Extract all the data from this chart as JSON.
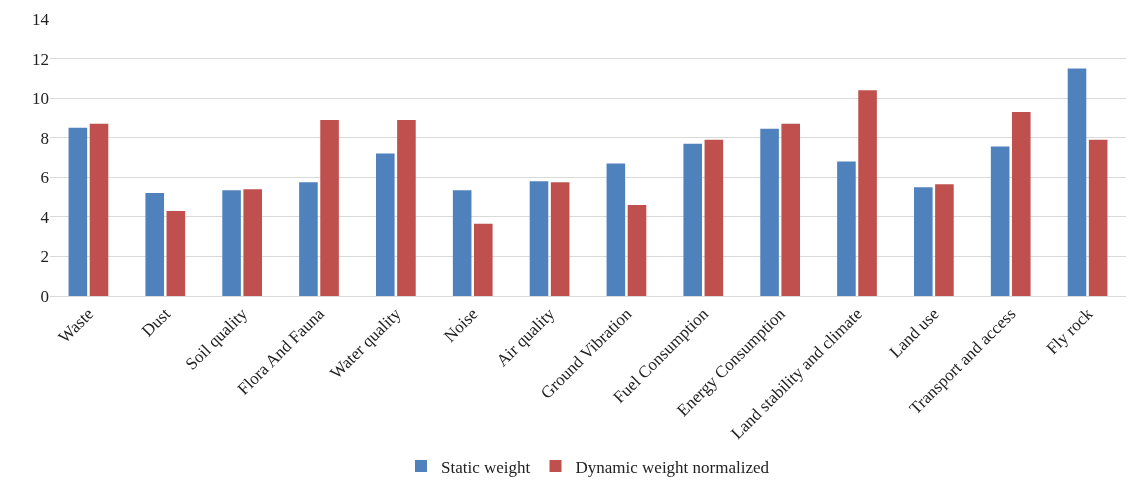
{
  "chart_data": {
    "type": "bar",
    "categories": [
      "Waste",
      "Dust",
      "Soil quality",
      "Flora And Fauna",
      "Water quality",
      "Noise",
      "Air quality",
      "Ground Vibration",
      "Fuel Consumption",
      "Energy Consumption",
      "Land stability and climate",
      "Land use",
      "Transport and access",
      "Fly rock"
    ],
    "series": [
      {
        "name": "Static weight",
        "color": "#4f81bd",
        "values": [
          8.5,
          5.2,
          5.35,
          5.75,
          7.2,
          5.35,
          5.8,
          6.7,
          7.7,
          8.45,
          6.8,
          5.5,
          7.55,
          11.5
        ]
      },
      {
        "name": "Dynamic weight normalized",
        "color": "#c0504d",
        "values": [
          8.7,
          4.3,
          5.4,
          8.9,
          8.9,
          3.65,
          5.75,
          4.6,
          7.9,
          8.7,
          10.4,
          5.65,
          9.3,
          7.9
        ]
      }
    ],
    "ylim": [
      0,
      14
    ],
    "yticks": [
      0,
      2,
      4,
      6,
      8,
      10,
      12,
      14
    ],
    "grid": "y",
    "legend": "bottom"
  }
}
